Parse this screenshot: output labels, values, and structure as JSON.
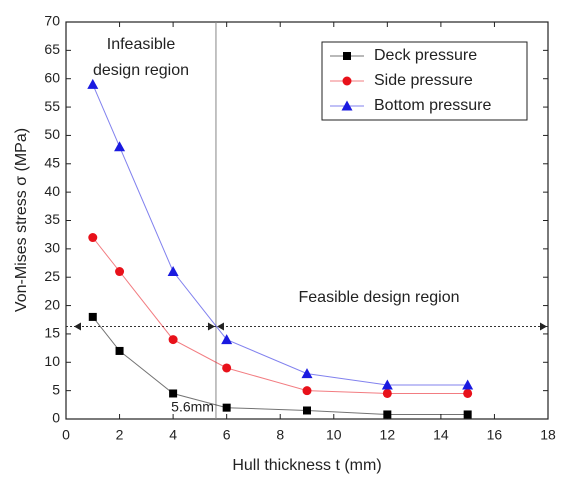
{
  "chart_data": {
    "type": "line",
    "x_label": "Hull thickness t (mm)",
    "y_label": "Von-Mises stress σ (MPa)",
    "x": [
      1,
      2,
      4,
      6,
      9,
      12,
      15
    ],
    "series": [
      {
        "name": "Deck pressure",
        "color": "#000000",
        "marker": "square",
        "values": [
          18,
          12,
          4.5,
          2,
          1.5,
          0.8,
          0.8
        ]
      },
      {
        "name": "Side pressure",
        "color": "#e8111a",
        "marker": "circle",
        "values": [
          32,
          26,
          14,
          9,
          5,
          4.5,
          4.5
        ]
      },
      {
        "name": "Bottom pressure",
        "color": "#1a1ae0",
        "marker": "triangle",
        "values": [
          59,
          48,
          26,
          14,
          8,
          6,
          6
        ]
      }
    ],
    "xlim": [
      0,
      18
    ],
    "xticks": [
      0,
      2,
      4,
      6,
      8,
      10,
      12,
      14,
      16,
      18
    ],
    "ylim": [
      0,
      70
    ],
    "yticks": [
      0,
      5,
      10,
      15,
      20,
      25,
      30,
      35,
      40,
      45,
      50,
      55,
      60,
      65,
      70
    ],
    "legend": "upper right",
    "threshold_x": 5.6,
    "threshold_x_label": "5.6mm",
    "threshold_y": 16.3,
    "infeasible_label": [
      "Infeasible",
      "design region"
    ],
    "feasible_label": "Feasible design region"
  }
}
